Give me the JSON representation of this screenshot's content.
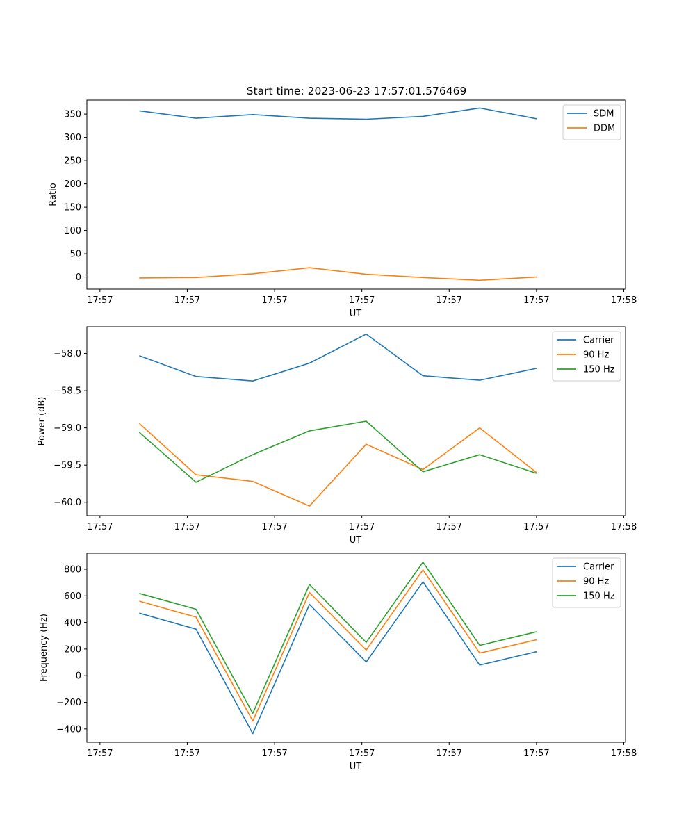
{
  "figure": {
    "title": "Start time: 2023-06-23 17:57:01.576469"
  },
  "chart_data": [
    {
      "type": "line",
      "title": "Start time: 2023-06-23 17:57:01.576469",
      "xlabel": "UT",
      "ylabel": "Ratio",
      "x_tick_labels": [
        "17:57",
        "17:57",
        "17:57",
        "17:57",
        "17:57",
        "17:57",
        "17:58"
      ],
      "y_ticks": [
        0,
        50,
        100,
        150,
        200,
        250,
        300,
        350
      ],
      "y_tick_labels": [
        "0",
        "50",
        "100",
        "150",
        "200",
        "250",
        "300",
        "350"
      ],
      "ylim": [
        -26,
        380
      ],
      "grid": false,
      "legend_position": "top-right",
      "series": [
        {
          "name": "SDM",
          "color": "#1f77b4",
          "values": [
            357,
            341,
            349,
            341,
            339,
            345,
            363,
            340
          ]
        },
        {
          "name": "DDM",
          "color": "#ff7f0e",
          "values": [
            -2,
            -1,
            7,
            20,
            6,
            -1,
            -7,
            0
          ]
        }
      ]
    },
    {
      "type": "line",
      "title": "",
      "xlabel": "UT",
      "ylabel": "Power (dB)",
      "x_tick_labels": [
        "17:57",
        "17:57",
        "17:57",
        "17:57",
        "17:57",
        "17:57",
        "17:58"
      ],
      "y_ticks": [
        -60.0,
        -59.5,
        -59.0,
        -58.5,
        -58.0
      ],
      "y_tick_labels": [
        "−60.0",
        "−59.5",
        "−59.0",
        "−58.5",
        "−58.0"
      ],
      "ylim": [
        -60.18,
        -57.64
      ],
      "grid": false,
      "legend_position": "top-right",
      "series": [
        {
          "name": "Carrier",
          "color": "#1f77b4",
          "values": [
            -58.03,
            -58.31,
            -58.37,
            -58.13,
            -57.74,
            -58.3,
            -58.36,
            -58.2
          ]
        },
        {
          "name": "90 Hz",
          "color": "#ff7f0e",
          "values": [
            -58.94,
            -59.63,
            -59.72,
            -60.05,
            -59.22,
            -59.56,
            -59.0,
            -59.6
          ]
        },
        {
          "name": "150 Hz",
          "color": "#2ca02c",
          "values": [
            -59.06,
            -59.73,
            -59.36,
            -59.04,
            -58.91,
            -59.59,
            -59.36,
            -59.61
          ]
        }
      ]
    },
    {
      "type": "line",
      "title": "",
      "xlabel": "UT",
      "ylabel": "Frequency (Hz)",
      "x_tick_labels": [
        "17:57",
        "17:57",
        "17:57",
        "17:57",
        "17:57",
        "17:57",
        "17:58"
      ],
      "y_ticks": [
        -400,
        -200,
        0,
        200,
        400,
        600,
        800
      ],
      "y_tick_labels": [
        "−400",
        "−200",
        "0",
        "200",
        "400",
        "600",
        "800"
      ],
      "ylim": [
        -500,
        920
      ],
      "grid": false,
      "legend_position": "top-right",
      "series": [
        {
          "name": "Carrier",
          "color": "#1f77b4",
          "values": [
            470,
            350,
            -435,
            535,
            103,
            705,
            80,
            180
          ]
        },
        {
          "name": "90 Hz",
          "color": "#ff7f0e",
          "values": [
            560,
            440,
            -340,
            625,
            193,
            795,
            170,
            270
          ]
        },
        {
          "name": "150 Hz",
          "color": "#2ca02c",
          "values": [
            618,
            500,
            -283,
            685,
            250,
            853,
            228,
            330
          ]
        }
      ]
    }
  ]
}
